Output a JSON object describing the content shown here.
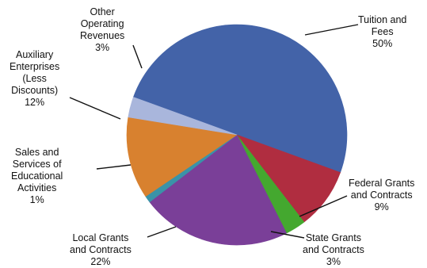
{
  "chart_data": {
    "type": "pie",
    "title": "",
    "slices": [
      {
        "key": "tuition",
        "label_lines": [
          "Tuition and",
          "Fees"
        ],
        "value_label": "50%",
        "value": 50,
        "color": "#4363a8"
      },
      {
        "key": "federal",
        "label_lines": [
          "Federal Grants",
          "and Contracts"
        ],
        "value_label": "9%",
        "value": 9,
        "color": "#b02d40"
      },
      {
        "key": "state",
        "label_lines": [
          "State Grants",
          "and Contracts"
        ],
        "value_label": "3%",
        "value": 3,
        "color": "#44a82f"
      },
      {
        "key": "local",
        "label_lines": [
          "Local Grants",
          "and Contracts"
        ],
        "value_label": "22%",
        "value": 22,
        "color": "#7a3f98"
      },
      {
        "key": "sales",
        "label_lines": [
          "Sales and",
          "Services of",
          "Educational",
          "Activities"
        ],
        "value_label": "1%",
        "value": 1,
        "color": "#3a93a8"
      },
      {
        "key": "auxiliary",
        "label_lines": [
          "Auxiliary",
          "Enterprises",
          "(Less",
          "Discounts)"
        ],
        "value_label": "12%",
        "value": 12,
        "color": "#d8812f"
      },
      {
        "key": "other",
        "label_lines": [
          "Other",
          "Operating",
          "Revenues"
        ],
        "value_label": "3%",
        "value": 3,
        "color": "#a9b6dc"
      }
    ]
  }
}
